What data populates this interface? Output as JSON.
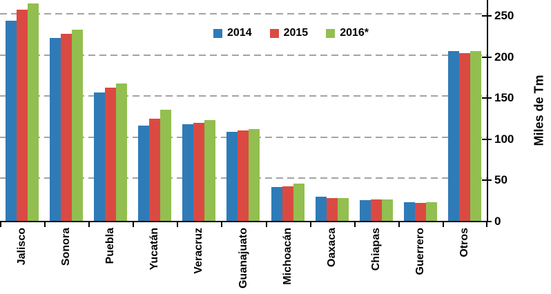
{
  "colors": {
    "series_2014": "#2E7BB8",
    "series_2015": "#DB4A42",
    "series_2016": "#92BF4F",
    "gridline": "#A3A3A3",
    "axis": "#000000",
    "background": "#FFFFFF"
  },
  "chart_data": {
    "type": "bar",
    "title": "",
    "xlabel": "",
    "ylabel": "Miles de Tm",
    "y_axis_side": "right",
    "ylim": [
      0,
      270
    ],
    "y_ticks": [
      0,
      50,
      100,
      150,
      200,
      250
    ],
    "grid": "horizontal dashed gray lines at every 50",
    "legend_position": "top-center-inside",
    "categories": [
      "Jalisco",
      "Sonora",
      "Puebla",
      "Yucatán",
      "Veracruz",
      "Guanajuato",
      "Michoacán",
      "Oaxaca",
      "Chiapas",
      "Guerrero",
      "Otros"
    ],
    "series": [
      {
        "name": "2014",
        "color": "#2E7BB8",
        "values": [
          244,
          223,
          156,
          116,
          118,
          108,
          41,
          29,
          25,
          23,
          207
        ]
      },
      {
        "name": "2015",
        "color": "#DB4A42",
        "values": [
          257,
          228,
          162,
          124,
          119,
          110,
          42,
          28,
          26,
          22,
          204
        ]
      },
      {
        "name": "2016*",
        "color": "#92BF4F",
        "values": [
          265,
          233,
          167,
          135,
          123,
          112,
          45,
          28,
          26,
          23,
          207
        ]
      }
    ]
  }
}
